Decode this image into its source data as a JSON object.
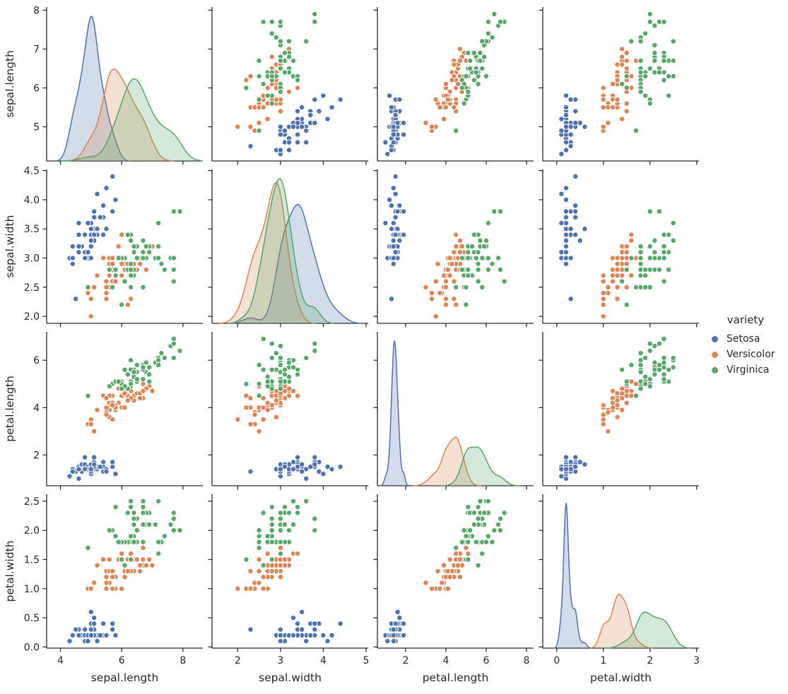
{
  "chart_data": {
    "type": "scatter",
    "subtype": "pairplot-scatter-matrix-with-kde-diagonal",
    "title": "",
    "variables": [
      "sepal.length",
      "sepal.width",
      "petal.length",
      "petal.width"
    ],
    "diagonal": "kde",
    "grid": {
      "rows": 4,
      "cols": 4
    },
    "legend": {
      "title": "variety",
      "position": "right",
      "entries": [
        {
          "label": "Setosa",
          "color": "#4c72b0"
        },
        {
          "label": "Versicolor",
          "color": "#dd8452"
        },
        {
          "label": "Virginica",
          "color": "#55a868"
        }
      ]
    },
    "axes": {
      "sepal.length": {
        "x_range": [
          3.55,
          8.65
        ],
        "x_ticks": [
          4,
          6,
          8
        ],
        "x_tick_labels": [
          "4",
          "6",
          "8"
        ],
        "y_range": [
          4.12,
          8.08
        ],
        "y_ticks": [
          5,
          6,
          7,
          8
        ],
        "y_tick_labels": [
          "5",
          "6",
          "7",
          "8"
        ]
      },
      "sepal.width": {
        "x_range": [
          1.4,
          5.05
        ],
        "x_ticks": [
          2,
          3,
          4,
          5
        ],
        "x_tick_labels": [
          "2",
          "3",
          "4",
          "5"
        ],
        "y_range": [
          1.88,
          4.52
        ],
        "y_ticks": [
          2.0,
          2.5,
          3.0,
          3.5,
          4.0,
          4.5
        ],
        "y_tick_labels": [
          "2.0",
          "2.5",
          "3.0",
          "3.5",
          "4.0",
          "4.5"
        ]
      },
      "petal.length": {
        "x_range": [
          0.6,
          8.35
        ],
        "x_ticks": [
          2,
          4,
          6,
          8
        ],
        "x_tick_labels": [
          "2",
          "4",
          "6",
          "8"
        ],
        "y_range": [
          0.7,
          7.2
        ],
        "y_ticks": [
          2,
          4,
          6
        ],
        "y_tick_labels": [
          "2",
          "4",
          "6"
        ]
      },
      "petal.width": {
        "x_range": [
          -0.3,
          3.05
        ],
        "x_ticks": [
          0,
          1,
          2,
          3
        ],
        "x_tick_labels": [
          "0",
          "1",
          "2",
          "3"
        ],
        "y_range": [
          -0.02,
          2.62
        ],
        "y_ticks": [
          0.0,
          0.5,
          1.0,
          1.5,
          2.0,
          2.5
        ],
        "y_tick_labels": [
          "0.0",
          "0.5",
          "1.0",
          "1.5",
          "2.0",
          "2.5"
        ]
      }
    },
    "style": {
      "axis_color": "#262626",
      "background": "#ffffff",
      "marker_edge_color": "#ffffff",
      "kde_fill_opacity": 0.25
    },
    "series": [
      {
        "name": "Setosa",
        "color": "#4c72b0",
        "points": [
          [
            5.1,
            3.5,
            1.4,
            0.2
          ],
          [
            4.9,
            3.0,
            1.4,
            0.2
          ],
          [
            4.7,
            3.2,
            1.3,
            0.2
          ],
          [
            4.6,
            3.1,
            1.5,
            0.2
          ],
          [
            5.0,
            3.6,
            1.4,
            0.2
          ],
          [
            5.4,
            3.9,
            1.7,
            0.4
          ],
          [
            4.6,
            3.4,
            1.4,
            0.3
          ],
          [
            5.0,
            3.4,
            1.5,
            0.2
          ],
          [
            4.4,
            2.9,
            1.4,
            0.2
          ],
          [
            4.9,
            3.1,
            1.5,
            0.1
          ],
          [
            5.4,
            3.7,
            1.5,
            0.2
          ],
          [
            4.8,
            3.4,
            1.6,
            0.2
          ],
          [
            4.8,
            3.0,
            1.4,
            0.1
          ],
          [
            4.3,
            3.0,
            1.1,
            0.1
          ],
          [
            5.8,
            4.0,
            1.2,
            0.2
          ],
          [
            5.7,
            4.4,
            1.5,
            0.4
          ],
          [
            5.4,
            3.9,
            1.3,
            0.4
          ],
          [
            5.1,
            3.5,
            1.4,
            0.3
          ],
          [
            5.7,
            3.8,
            1.7,
            0.3
          ],
          [
            5.1,
            3.8,
            1.5,
            0.3
          ],
          [
            5.4,
            3.4,
            1.7,
            0.2
          ],
          [
            5.1,
            3.7,
            1.5,
            0.4
          ],
          [
            4.6,
            3.6,
            1.0,
            0.2
          ],
          [
            5.1,
            3.3,
            1.7,
            0.5
          ],
          [
            4.8,
            3.4,
            1.9,
            0.2
          ],
          [
            5.0,
            3.0,
            1.6,
            0.2
          ],
          [
            5.0,
            3.4,
            1.6,
            0.4
          ],
          [
            5.2,
            3.5,
            1.5,
            0.2
          ],
          [
            5.2,
            3.4,
            1.4,
            0.2
          ],
          [
            4.7,
            3.2,
            1.6,
            0.2
          ],
          [
            4.8,
            3.1,
            1.6,
            0.2
          ],
          [
            5.4,
            3.4,
            1.5,
            0.4
          ],
          [
            5.2,
            4.1,
            1.5,
            0.1
          ],
          [
            5.5,
            4.2,
            1.4,
            0.2
          ],
          [
            4.9,
            3.1,
            1.5,
            0.2
          ],
          [
            5.0,
            3.2,
            1.2,
            0.2
          ],
          [
            5.5,
            3.5,
            1.3,
            0.2
          ],
          [
            4.9,
            3.6,
            1.4,
            0.1
          ],
          [
            4.4,
            3.0,
            1.3,
            0.2
          ],
          [
            5.1,
            3.4,
            1.5,
            0.2
          ],
          [
            5.0,
            3.5,
            1.3,
            0.3
          ],
          [
            4.5,
            2.3,
            1.3,
            0.3
          ],
          [
            4.4,
            3.2,
            1.3,
            0.2
          ],
          [
            5.0,
            3.5,
            1.6,
            0.6
          ],
          [
            5.1,
            3.8,
            1.9,
            0.4
          ],
          [
            4.8,
            3.0,
            1.4,
            0.3
          ],
          [
            5.1,
            3.8,
            1.6,
            0.2
          ],
          [
            4.6,
            3.2,
            1.4,
            0.2
          ],
          [
            5.3,
            3.7,
            1.5,
            0.2
          ],
          [
            5.0,
            3.3,
            1.4,
            0.2
          ]
        ]
      },
      {
        "name": "Versicolor",
        "color": "#dd8452",
        "points": [
          [
            7.0,
            3.2,
            4.7,
            1.4
          ],
          [
            6.4,
            3.2,
            4.5,
            1.5
          ],
          [
            6.9,
            3.1,
            4.9,
            1.5
          ],
          [
            5.5,
            2.3,
            4.0,
            1.3
          ],
          [
            6.5,
            2.8,
            4.6,
            1.5
          ],
          [
            5.7,
            2.8,
            4.5,
            1.3
          ],
          [
            6.3,
            3.3,
            4.7,
            1.6
          ],
          [
            4.9,
            2.4,
            3.3,
            1.0
          ],
          [
            6.6,
            2.9,
            4.6,
            1.3
          ],
          [
            5.2,
            2.7,
            3.9,
            1.4
          ],
          [
            5.0,
            2.0,
            3.5,
            1.0
          ],
          [
            5.9,
            3.0,
            4.2,
            1.5
          ],
          [
            6.0,
            2.2,
            4.0,
            1.0
          ],
          [
            6.1,
            2.9,
            4.7,
            1.4
          ],
          [
            5.6,
            2.9,
            3.6,
            1.3
          ],
          [
            6.7,
            3.1,
            4.4,
            1.4
          ],
          [
            5.6,
            3.0,
            4.5,
            1.5
          ],
          [
            5.8,
            2.7,
            4.1,
            1.0
          ],
          [
            6.2,
            2.2,
            4.5,
            1.5
          ],
          [
            5.6,
            2.5,
            3.9,
            1.1
          ],
          [
            5.9,
            3.2,
            4.8,
            1.8
          ],
          [
            6.1,
            2.8,
            4.0,
            1.3
          ],
          [
            6.3,
            2.5,
            4.9,
            1.5
          ],
          [
            6.1,
            2.8,
            4.7,
            1.2
          ],
          [
            6.4,
            2.9,
            4.3,
            1.3
          ],
          [
            6.6,
            3.0,
            4.4,
            1.4
          ],
          [
            6.8,
            2.8,
            4.8,
            1.4
          ],
          [
            6.7,
            3.0,
            5.0,
            1.7
          ],
          [
            6.0,
            2.9,
            4.5,
            1.5
          ],
          [
            5.7,
            2.6,
            3.5,
            1.0
          ],
          [
            5.5,
            2.4,
            3.8,
            1.1
          ],
          [
            5.5,
            2.4,
            3.7,
            1.0
          ],
          [
            5.8,
            2.7,
            3.9,
            1.2
          ],
          [
            6.0,
            2.7,
            5.1,
            1.6
          ],
          [
            5.4,
            3.0,
            4.5,
            1.5
          ],
          [
            6.0,
            3.4,
            4.5,
            1.6
          ],
          [
            6.7,
            3.1,
            4.7,
            1.5
          ],
          [
            6.3,
            2.3,
            4.4,
            1.3
          ],
          [
            5.6,
            3.0,
            4.1,
            1.3
          ],
          [
            5.5,
            2.5,
            4.0,
            1.3
          ],
          [
            5.5,
            2.6,
            4.4,
            1.2
          ],
          [
            6.1,
            3.0,
            4.6,
            1.4
          ],
          [
            5.8,
            2.6,
            4.0,
            1.2
          ],
          [
            5.0,
            2.3,
            3.3,
            1.0
          ],
          [
            5.6,
            2.7,
            4.2,
            1.3
          ],
          [
            5.7,
            3.0,
            4.2,
            1.2
          ],
          [
            5.7,
            2.9,
            4.2,
            1.3
          ],
          [
            6.2,
            2.9,
            4.3,
            1.3
          ],
          [
            5.1,
            2.5,
            3.0,
            1.1
          ],
          [
            5.7,
            2.8,
            4.1,
            1.3
          ]
        ]
      },
      {
        "name": "Virginica",
        "color": "#55a868",
        "points": [
          [
            6.3,
            3.3,
            6.0,
            2.5
          ],
          [
            5.8,
            2.7,
            5.1,
            1.9
          ],
          [
            7.1,
            3.0,
            5.9,
            2.1
          ],
          [
            6.3,
            2.9,
            5.6,
            1.8
          ],
          [
            6.5,
            3.0,
            5.8,
            2.2
          ],
          [
            7.6,
            3.0,
            6.6,
            2.1
          ],
          [
            4.9,
            2.5,
            4.5,
            1.7
          ],
          [
            7.3,
            2.9,
            6.3,
            1.8
          ],
          [
            6.7,
            2.5,
            5.8,
            1.8
          ],
          [
            7.2,
            3.6,
            6.1,
            2.5
          ],
          [
            6.5,
            3.2,
            5.1,
            2.0
          ],
          [
            6.4,
            2.7,
            5.3,
            1.9
          ],
          [
            6.8,
            3.0,
            5.5,
            2.1
          ],
          [
            5.7,
            2.5,
            5.0,
            2.0
          ],
          [
            5.8,
            2.8,
            5.1,
            2.4
          ],
          [
            6.4,
            3.2,
            5.3,
            2.3
          ],
          [
            6.5,
            3.0,
            5.5,
            1.8
          ],
          [
            7.7,
            3.8,
            6.7,
            2.2
          ],
          [
            7.7,
            2.6,
            6.9,
            2.3
          ],
          [
            6.0,
            2.2,
            5.0,
            1.5
          ],
          [
            6.9,
            3.2,
            5.7,
            2.3
          ],
          [
            5.6,
            2.8,
            4.9,
            2.0
          ],
          [
            7.7,
            2.8,
            6.7,
            2.0
          ],
          [
            6.3,
            2.7,
            4.9,
            1.8
          ],
          [
            6.7,
            3.3,
            5.7,
            2.1
          ],
          [
            7.2,
            3.2,
            6.0,
            1.8
          ],
          [
            6.2,
            2.8,
            4.8,
            1.8
          ],
          [
            6.1,
            3.0,
            4.9,
            1.8
          ],
          [
            6.4,
            2.8,
            5.6,
            2.1
          ],
          [
            7.2,
            3.0,
            5.8,
            1.6
          ],
          [
            7.4,
            2.8,
            6.1,
            1.9
          ],
          [
            7.9,
            3.8,
            6.4,
            2.0
          ],
          [
            6.4,
            2.8,
            5.6,
            2.2
          ],
          [
            6.3,
            2.8,
            5.1,
            1.5
          ],
          [
            6.1,
            2.6,
            5.6,
            1.4
          ],
          [
            7.7,
            3.0,
            6.1,
            2.3
          ],
          [
            6.3,
            3.4,
            5.6,
            2.4
          ],
          [
            6.4,
            3.1,
            5.5,
            1.8
          ],
          [
            6.0,
            3.0,
            4.8,
            1.8
          ],
          [
            6.9,
            3.1,
            5.4,
            2.1
          ],
          [
            6.7,
            3.1,
            5.6,
            2.4
          ],
          [
            6.9,
            3.1,
            5.1,
            2.3
          ],
          [
            5.8,
            2.7,
            5.1,
            1.9
          ],
          [
            6.8,
            3.2,
            5.9,
            2.3
          ],
          [
            6.7,
            3.3,
            5.7,
            2.5
          ],
          [
            6.7,
            3.0,
            5.2,
            2.3
          ],
          [
            6.3,
            2.5,
            5.0,
            1.9
          ],
          [
            6.5,
            3.0,
            5.2,
            2.0
          ],
          [
            6.2,
            3.4,
            5.4,
            2.3
          ],
          [
            5.9,
            3.0,
            5.1,
            1.8
          ]
        ]
      }
    ]
  }
}
